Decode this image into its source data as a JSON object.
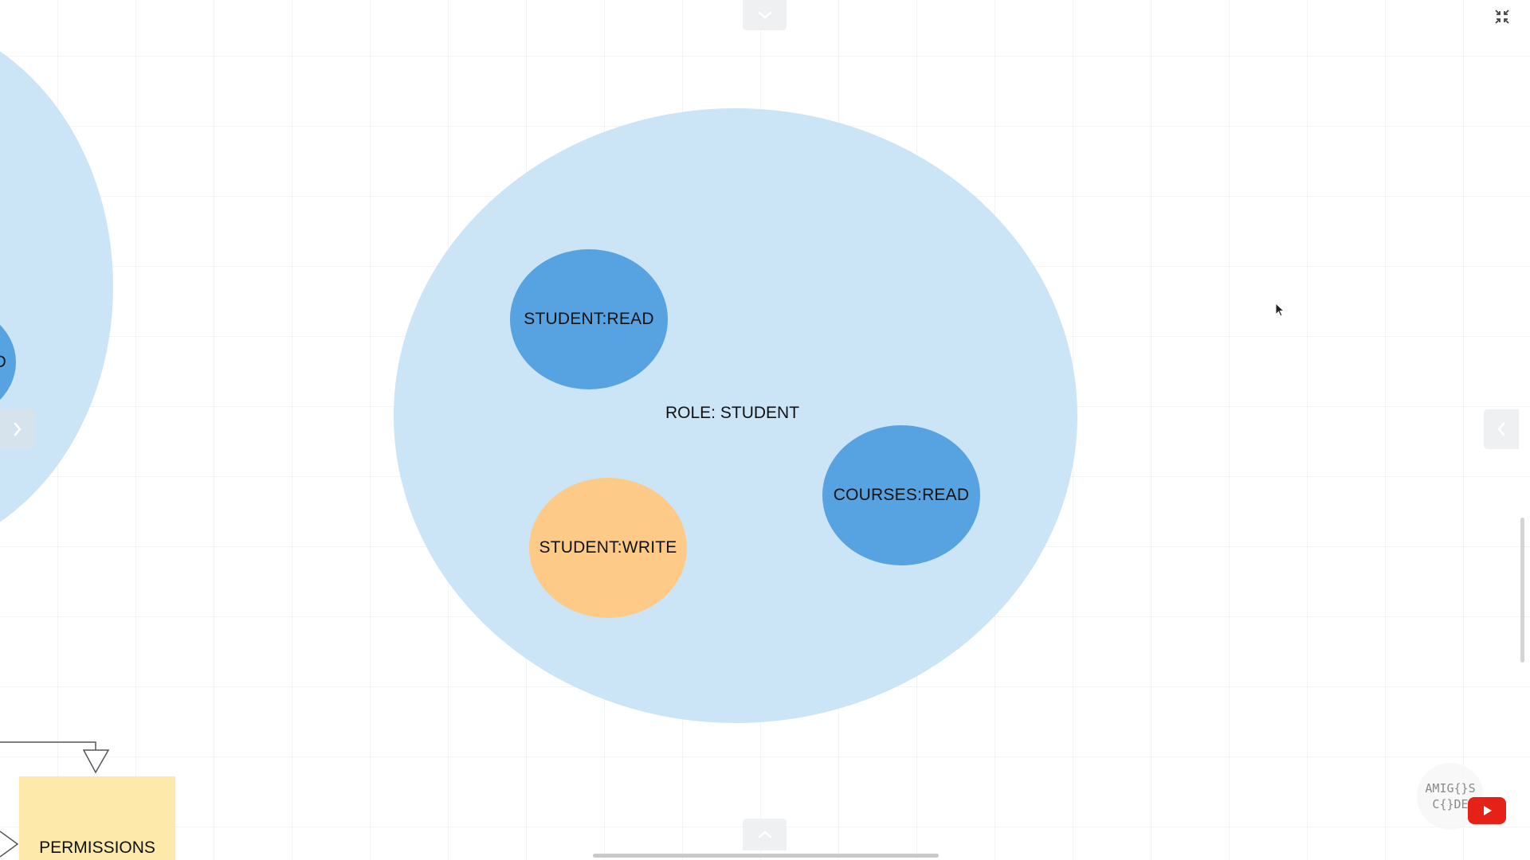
{
  "diagram": {
    "role_label": "ROLE: STUDENT",
    "permissions": [
      {
        "label": "STUDENT:READ",
        "color": "#57a2e0"
      },
      {
        "label": "STUDENT:WRITE",
        "color": "#fdca88"
      },
      {
        "label": "COURSES:READ",
        "color": "#57a2e0"
      }
    ],
    "left_partial_label": "D",
    "permissions_box_label": "PERMISSIONS"
  },
  "watermark": {
    "line1": "AMIG{}S",
    "line2": "C{}DE"
  },
  "colors": {
    "role_fill": "#cbe5f7",
    "permission_blue": "#57a2e0",
    "permission_orange": "#fdca88",
    "permissions_box": "#fde9a9",
    "youtube_red": "#e62117"
  },
  "icons": {
    "top_panel_toggle": "chevron-down-icon",
    "bottom_panel_toggle": "chevron-up-icon",
    "left_panel_toggle": "chevron-right-icon",
    "right_panel_toggle": "chevron-left-icon",
    "fullscreen": "collapse-icon",
    "video_logo": "youtube-icon",
    "pointer": "cursor-icon"
  }
}
